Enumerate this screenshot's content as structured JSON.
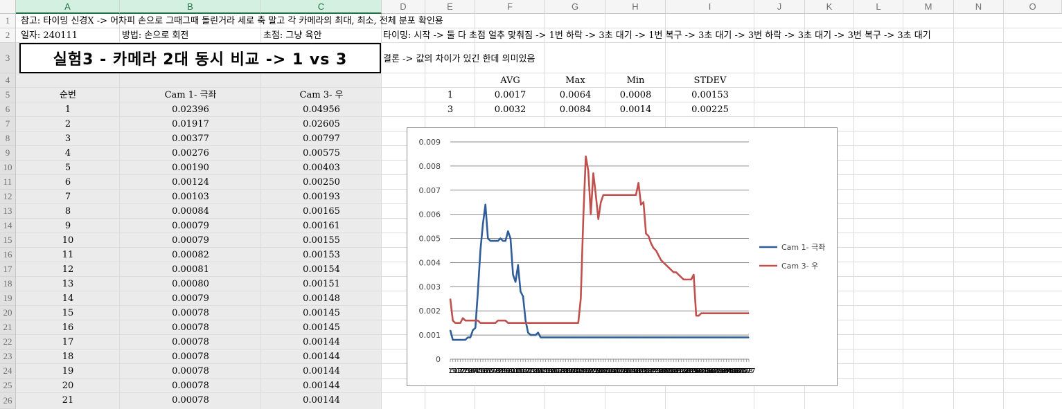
{
  "columns": [
    "A",
    "B",
    "C",
    "D",
    "E",
    "F",
    "G",
    "H",
    "I",
    "J",
    "K",
    "L",
    "M",
    "N",
    "O"
  ],
  "selected_columns": [
    "A",
    "B",
    "C"
  ],
  "rows": [
    "1",
    "2",
    "3",
    "4",
    "5",
    "6",
    "7",
    "8",
    "9",
    "10",
    "11",
    "12",
    "13",
    "14",
    "15",
    "16",
    "17",
    "18",
    "19",
    "20",
    "21",
    "22",
    "23",
    "24",
    "25",
    "26"
  ],
  "selected_rows": [
    "3",
    "4",
    "5",
    "6",
    "7",
    "8",
    "9",
    "10",
    "11",
    "12",
    "13",
    "14",
    "15",
    "16",
    "17",
    "18",
    "19",
    "20",
    "21",
    "22",
    "23",
    "24",
    "25",
    "26"
  ],
  "notes": {
    "r1": "참고: 타이밍 신경X -> 어차피 손으로 그때그때 돌린거라 세로 축 말고 각 카메라의 최대, 최소, 전체 분포 확인용",
    "date": "일자: 240111",
    "method": "방법: 손으로 회전",
    "focus": "초점: 그냥 육안",
    "timing": "타이밍: 시작 -> 둘 다 초점 얼추 맞춰짐 -> 1번 하락 -> 3초 대기 -> 1번 복구 -> 3초 대기 -> 3번 하락 -> 3초 대기 -> 3번 복구 -> 3초 대기",
    "title": "실험3 - 카메라 2대 동시 비교 -> 1 vs 3",
    "conclusion": "결론 -> 값의 차이가 있긴 한데 의미있음"
  },
  "table": {
    "headers": [
      "순번",
      "Cam 1- 극좌",
      "Cam 3- 우"
    ],
    "rows": [
      [
        "1",
        "0.02396",
        "0.04956"
      ],
      [
        "2",
        "0.01917",
        "0.02605"
      ],
      [
        "3",
        "0.00377",
        "0.00797"
      ],
      [
        "4",
        "0.00276",
        "0.00575"
      ],
      [
        "5",
        "0.00190",
        "0.00403"
      ],
      [
        "6",
        "0.00124",
        "0.00250"
      ],
      [
        "7",
        "0.00103",
        "0.00193"
      ],
      [
        "8",
        "0.00084",
        "0.00165"
      ],
      [
        "9",
        "0.00079",
        "0.00161"
      ],
      [
        "10",
        "0.00079",
        "0.00155"
      ],
      [
        "11",
        "0.00082",
        "0.00153"
      ],
      [
        "12",
        "0.00081",
        "0.00154"
      ],
      [
        "13",
        "0.00080",
        "0.00151"
      ],
      [
        "14",
        "0.00079",
        "0.00148"
      ],
      [
        "15",
        "0.00078",
        "0.00145"
      ],
      [
        "16",
        "0.00078",
        "0.00145"
      ],
      [
        "17",
        "0.00078",
        "0.00144"
      ],
      [
        "18",
        "0.00078",
        "0.00144"
      ],
      [
        "19",
        "0.00078",
        "0.00144"
      ],
      [
        "20",
        "0.00078",
        "0.00144"
      ],
      [
        "21",
        "0.00078",
        "0.00144"
      ]
    ]
  },
  "stats": {
    "headers": [
      "AVG",
      "Max",
      "Min",
      "STDEV"
    ],
    "rows": [
      {
        "cam": "1",
        "values": [
          "0.0017",
          "0.0064",
          "0.0008",
          "0.00153"
        ]
      },
      {
        "cam": "3",
        "values": [
          "0.0032",
          "0.0084",
          "0.0014",
          "0.00225"
        ]
      }
    ]
  },
  "chart_data": {
    "type": "line",
    "title": "",
    "xlabel": "",
    "ylabel": "",
    "ylim": [
      0,
      0.009
    ],
    "yticks": [
      "0",
      "0.001",
      "0.002",
      "0.003",
      "0.004",
      "0.005",
      "0.006",
      "0.007",
      "0.008",
      "0.009"
    ],
    "grid": true,
    "legend_position": "right",
    "x": [
      1,
      5,
      9,
      13,
      17,
      21,
      25,
      29,
      33,
      37,
      41,
      45,
      49,
      53,
      57,
      61,
      65,
      69,
      73,
      77,
      81,
      85,
      89,
      93,
      97,
      101,
      105,
      109,
      113,
      117,
      121,
      125,
      129,
      133,
      137,
      141,
      145,
      149,
      153,
      157,
      161,
      165,
      169,
      173,
      177,
      181,
      185,
      189,
      193,
      197,
      201,
      205,
      209,
      213,
      217,
      221,
      225,
      229,
      233,
      237,
      241,
      245,
      249,
      253,
      257,
      261,
      265,
      269,
      273,
      277,
      281,
      285,
      289,
      293,
      297,
      301,
      305,
      309,
      313,
      317,
      321,
      325,
      329,
      333,
      337,
      341,
      345,
      349,
      353,
      357,
      361,
      365,
      369,
      373,
      377,
      381,
      385,
      389,
      393,
      397,
      401,
      405,
      409,
      413,
      417,
      421,
      425,
      429,
      433,
      437,
      441,
      445,
      449,
      453,
      457,
      461,
      465,
      469,
      473,
      477
    ],
    "series": [
      {
        "name": "Cam 1- 극좌",
        "color": "#2e5d99",
        "values": [
          0.0012,
          0.0008,
          0.0008,
          0.0008,
          0.0008,
          0.0008,
          0.0008,
          0.0009,
          0.0009,
          0.0012,
          0.0013,
          0.0028,
          0.0045,
          0.0056,
          0.0064,
          0.005,
          0.0049,
          0.0049,
          0.0049,
          0.0049,
          0.005,
          0.0049,
          0.0049,
          0.0053,
          0.005,
          0.0035,
          0.0032,
          0.0039,
          0.0028,
          0.0026,
          0.0016,
          0.0011,
          0.001,
          0.001,
          0.001,
          0.0011,
          0.0009,
          0.0009,
          0.0009,
          0.0009,
          0.0009,
          0.0009,
          0.0009,
          0.0009,
          0.0009,
          0.0009,
          0.0009,
          0.0009,
          0.0009,
          0.0009,
          0.0009,
          0.0009,
          0.0009,
          0.0009,
          0.0009,
          0.0009,
          0.0009,
          0.0009,
          0.0009,
          0.0009,
          0.0009,
          0.0009,
          0.0009,
          0.0009,
          0.0009,
          0.0009,
          0.0009,
          0.0009,
          0.0009,
          0.0009,
          0.0009,
          0.0009,
          0.0009,
          0.0009,
          0.0009,
          0.0009,
          0.0009,
          0.0009,
          0.0009,
          0.0009,
          0.0009,
          0.0009,
          0.0009,
          0.0009,
          0.0009,
          0.0009,
          0.0009,
          0.0009,
          0.0009,
          0.0009,
          0.0009,
          0.0009,
          0.0009,
          0.0009,
          0.0009,
          0.0009,
          0.0009,
          0.0009,
          0.0009,
          0.0009,
          0.0009,
          0.0009,
          0.0009,
          0.0009,
          0.0009,
          0.0009,
          0.0009,
          0.0009,
          0.0009,
          0.0009,
          0.0009,
          0.0009,
          0.0009,
          0.0009,
          0.0009,
          0.0009,
          0.0009,
          0.0009,
          0.0009,
          0.0009
        ]
      },
      {
        "name": "Cam 3- 우",
        "color": "#c0504d",
        "values": [
          0.0025,
          0.0016,
          0.0015,
          0.0015,
          0.0015,
          0.0017,
          0.0016,
          0.0016,
          0.0016,
          0.0016,
          0.0016,
          0.0016,
          0.0015,
          0.0015,
          0.0015,
          0.0015,
          0.0015,
          0.0015,
          0.0015,
          0.0016,
          0.0016,
          0.0016,
          0.0016,
          0.0015,
          0.0015,
          0.0015,
          0.0015,
          0.0015,
          0.0015,
          0.0015,
          0.0015,
          0.0015,
          0.0015,
          0.0015,
          0.0015,
          0.0015,
          0.0015,
          0.0015,
          0.0015,
          0.0015,
          0.0015,
          0.0015,
          0.0015,
          0.0015,
          0.0015,
          0.0015,
          0.0015,
          0.0015,
          0.0015,
          0.0015,
          0.0015,
          0.0015,
          0.0025,
          0.0058,
          0.0084,
          0.0078,
          0.006,
          0.0077,
          0.0068,
          0.0058,
          0.0065,
          0.0068,
          0.0068,
          0.0068,
          0.0068,
          0.0068,
          0.0068,
          0.0068,
          0.0068,
          0.0068,
          0.0068,
          0.0068,
          0.0068,
          0.0068,
          0.0068,
          0.0073,
          0.0064,
          0.0065,
          0.0052,
          0.0051,
          0.0048,
          0.0046,
          0.0045,
          0.0043,
          0.0041,
          0.004,
          0.0039,
          0.0038,
          0.0037,
          0.0036,
          0.0036,
          0.0035,
          0.0034,
          0.0033,
          0.0033,
          0.0033,
          0.0033,
          0.0035,
          0.0018,
          0.0018,
          0.0019,
          0.0019,
          0.0019,
          0.0019,
          0.0019,
          0.0019,
          0.0019,
          0.0019,
          0.0019,
          0.0019,
          0.0019,
          0.0019,
          0.0019,
          0.0019,
          0.0019,
          0.0019,
          0.0019,
          0.0019,
          0.0019,
          0.0019
        ]
      }
    ]
  }
}
